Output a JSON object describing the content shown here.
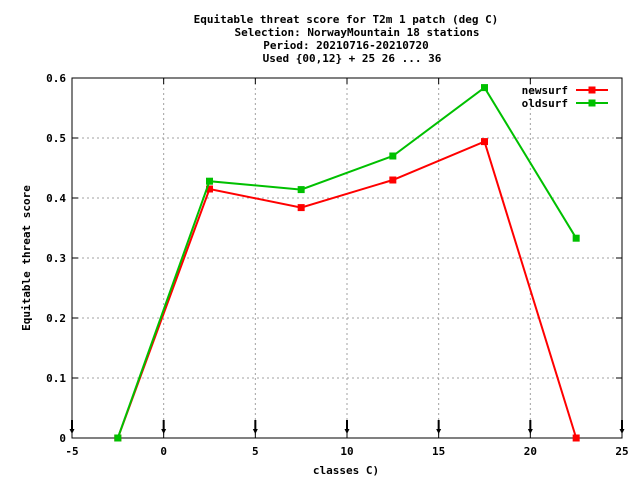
{
  "chart_data": {
    "type": "line",
    "title_lines": [
      "Equitable threat score  for T2m 1 patch (deg C)",
      "Selection: NorwayMountain     18 stations",
      "Period: 20210716-20210720",
      "Used {00,12} + 25 26 ... 36"
    ],
    "xlabel": "classes C)",
    "ylabel": "Equitable threat score",
    "xlim": [
      -5,
      25
    ],
    "ylim": [
      0,
      0.6
    ],
    "x_ticks": [
      -5,
      0,
      5,
      10,
      15,
      20,
      25
    ],
    "y_ticks": [
      0,
      0.1,
      0.2,
      0.3,
      0.4,
      0.5,
      0.6
    ],
    "x_tick_labels": [
      "-5",
      "0",
      "5",
      "10",
      "15",
      "20",
      "25"
    ],
    "y_tick_labels": [
      "0",
      "0.1",
      "0.2",
      "0.3",
      "0.4",
      "0.5",
      "0.6"
    ],
    "grid": true,
    "legend_position": "top-right",
    "arrow_marker_x": [
      -5,
      0,
      5,
      10,
      15,
      20,
      25
    ],
    "series": [
      {
        "name": "newsurf",
        "color": "#ff0000",
        "x": [
          -2.5,
          2.5,
          7.5,
          12.5,
          17.5,
          22.5
        ],
        "y": [
          0.0,
          0.415,
          0.384,
          0.43,
          0.494,
          0.0
        ]
      },
      {
        "name": "oldsurf",
        "color": "#00c000",
        "x": [
          -2.5,
          2.5,
          7.5,
          12.5,
          17.5,
          22.5
        ],
        "y": [
          0.0,
          0.428,
          0.414,
          0.47,
          0.584,
          0.333
        ]
      }
    ]
  }
}
